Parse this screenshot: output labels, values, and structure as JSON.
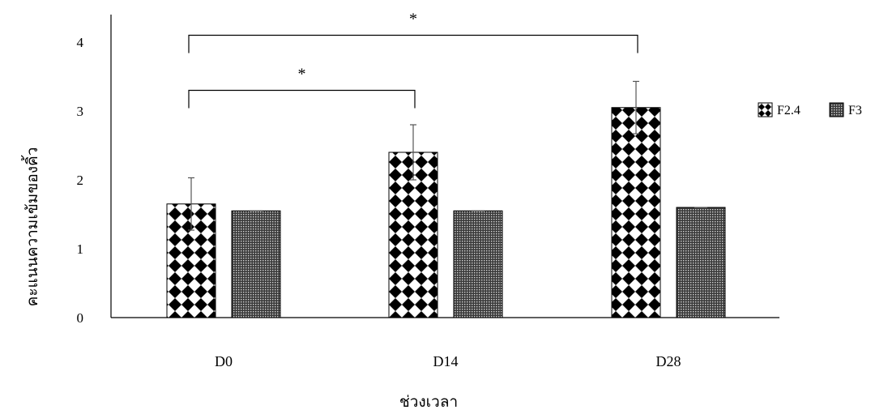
{
  "chart_data": {
    "type": "bar",
    "title": "",
    "xlabel": "ช่วงเวลา",
    "ylabel": "คะแนนความเข้มของคิ้ว",
    "categories": [
      "D0",
      "D14",
      "D28"
    ],
    "ylim": [
      0,
      4
    ],
    "yticks": [
      0,
      1,
      2,
      3,
      4
    ],
    "grid": false,
    "legend_position": "right",
    "series": [
      {
        "name": "F2.4",
        "values": [
          1.65,
          2.4,
          3.05
        ],
        "errors": [
          0.38,
          0.4,
          0.38
        ],
        "pattern": "diamond-checker"
      },
      {
        "name": "F3",
        "values": [
          1.55,
          1.55,
          1.6
        ],
        "errors": [
          0.01,
          0.01,
          0.01
        ],
        "pattern": "fine-dots"
      }
    ],
    "significance": [
      {
        "from": "D0",
        "to": "D14",
        "y": 3.3,
        "label": "*"
      },
      {
        "from": "D0",
        "to": "D28",
        "y": 4.1,
        "label": "*"
      }
    ]
  }
}
